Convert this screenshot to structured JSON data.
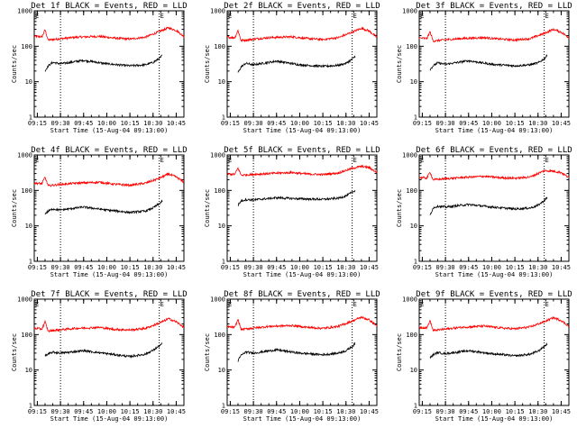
{
  "chart_data": [
    {
      "type": "line",
      "title": "Det 1f BLACK = Events, RED = LLD",
      "xlabel": "Start Time (15-Aug-04 09:13:00)",
      "ylabel": "Counts/sec",
      "yscale": "log",
      "ylim": [
        1,
        1000
      ],
      "xlim": [
        "09:13",
        "10:50"
      ],
      "xticks": [
        "09:15",
        "09:30",
        "09:45",
        "10:00",
        "10:15",
        "10:30",
        "10:45"
      ],
      "yticks": [
        "1",
        "10",
        "100",
        "1000"
      ],
      "markers": [
        {
          "label": "E",
          "x": "09:13"
        },
        {
          "label": "E",
          "x": "10:34"
        }
      ],
      "vlines": [
        "09:30",
        "10:34"
      ],
      "grid": false,
      "legend": "none",
      "series": [
        {
          "color": "#ff0000",
          "x": [
            "09:13",
            "09:18",
            "09:20",
            "09:22",
            "09:28",
            "09:40",
            "09:55",
            "10:05",
            "10:15",
            "10:25",
            "10:34",
            "10:40",
            "10:45",
            "10:50"
          ],
          "values": [
            190,
            185,
            290,
            150,
            160,
            180,
            190,
            170,
            160,
            180,
            260,
            330,
            280,
            190
          ]
        },
        {
          "color": "#000000",
          "x": [
            "09:20",
            "09:22",
            "09:25",
            "09:30",
            "09:45",
            "10:00",
            "10:15",
            "10:25",
            "10:30",
            "10:34",
            "10:36"
          ],
          "values": [
            20,
            28,
            35,
            32,
            40,
            32,
            28,
            30,
            35,
            45,
            55
          ]
        }
      ]
    },
    {
      "type": "line",
      "title": "Det 2f BLACK = Events, RED = LLD",
      "xlabel": "Start Time (15-Aug-04 09:13:00)",
      "ylabel": "Counts/sec",
      "yscale": "log",
      "ylim": [
        1,
        1000
      ],
      "xlim": [
        "09:13",
        "10:50"
      ],
      "xticks": [
        "09:15",
        "09:30",
        "09:45",
        "10:00",
        "10:15",
        "10:30",
        "10:45"
      ],
      "yticks": [
        "1",
        "10",
        "100",
        "1000"
      ],
      "markers": [
        {
          "label": "E",
          "x": "09:13"
        },
        {
          "label": "E",
          "x": "10:34"
        }
      ],
      "vlines": [
        "09:30",
        "10:34"
      ],
      "grid": false,
      "legend": "none",
      "series": [
        {
          "color": "#ff0000",
          "x": [
            "09:13",
            "09:18",
            "09:20",
            "09:22",
            "09:28",
            "09:40",
            "09:55",
            "10:05",
            "10:15",
            "10:25",
            "10:34",
            "10:40",
            "10:45",
            "10:50"
          ],
          "values": [
            180,
            175,
            280,
            145,
            155,
            175,
            185,
            165,
            155,
            175,
            250,
            320,
            270,
            180
          ]
        },
        {
          "color": "#000000",
          "x": [
            "09:20",
            "09:22",
            "09:25",
            "09:30",
            "09:45",
            "10:00",
            "10:15",
            "10:25",
            "10:30",
            "10:34",
            "10:36"
          ],
          "values": [
            18,
            26,
            33,
            30,
            38,
            30,
            27,
            29,
            33,
            43,
            52
          ]
        }
      ]
    },
    {
      "type": "line",
      "title": "Det 3f BLACK = Events, RED = LLD",
      "xlabel": "Start Time (15-Aug-04 09:13:00)",
      "ylabel": "Counts/sec",
      "yscale": "log",
      "ylim": [
        1,
        1000
      ],
      "xlim": [
        "09:13",
        "10:50"
      ],
      "xticks": [
        "09:15",
        "09:30",
        "09:45",
        "10:00",
        "10:15",
        "10:30",
        "10:45"
      ],
      "yticks": [
        "1",
        "10",
        "100",
        "1000"
      ],
      "markers": [
        {
          "label": "E",
          "x": "09:13"
        },
        {
          "label": "E",
          "x": "10:34"
        }
      ],
      "vlines": [
        "09:30",
        "10:34"
      ],
      "grid": false,
      "legend": "none",
      "series": [
        {
          "color": "#ff0000",
          "x": [
            "09:13",
            "09:18",
            "09:20",
            "09:22",
            "09:28",
            "09:40",
            "09:55",
            "10:05",
            "10:15",
            "10:25",
            "10:34",
            "10:40",
            "10:45",
            "10:50"
          ],
          "values": [
            170,
            165,
            260,
            140,
            150,
            165,
            175,
            160,
            150,
            165,
            230,
            300,
            250,
            175
          ]
        },
        {
          "color": "#000000",
          "x": [
            "09:20",
            "09:22",
            "09:25",
            "09:30",
            "09:45",
            "10:00",
            "10:15",
            "10:25",
            "10:30",
            "10:34",
            "10:36"
          ],
          "values": [
            22,
            28,
            34,
            31,
            39,
            31,
            28,
            30,
            34,
            44,
            56
          ]
        }
      ]
    },
    {
      "type": "line",
      "title": "Det 4f BLACK = Events, RED = LLD",
      "xlabel": "Start Time (15-Aug-04 09:13:00)",
      "ylabel": "Counts/sec",
      "yscale": "log",
      "ylim": [
        1,
        1000
      ],
      "xlim": [
        "09:13",
        "10:50"
      ],
      "xticks": [
        "09:15",
        "09:30",
        "09:45",
        "10:00",
        "10:15",
        "10:30",
        "10:45"
      ],
      "yticks": [
        "1",
        "10",
        "100",
        "1000"
      ],
      "markers": [
        {
          "label": "E",
          "x": "09:13"
        },
        {
          "label": "E",
          "x": "10:34"
        }
      ],
      "vlines": [
        "09:30",
        "10:34"
      ],
      "grid": false,
      "legend": "none",
      "series": [
        {
          "color": "#ff0000",
          "x": [
            "09:13",
            "09:18",
            "09:20",
            "09:22",
            "09:28",
            "09:40",
            "09:55",
            "10:05",
            "10:15",
            "10:25",
            "10:34",
            "10:40",
            "10:45",
            "10:50"
          ],
          "values": [
            160,
            155,
            240,
            135,
            145,
            160,
            170,
            150,
            140,
            160,
            220,
            290,
            240,
            170
          ]
        },
        {
          "color": "#000000",
          "x": [
            "09:20",
            "09:22",
            "09:25",
            "09:30",
            "09:45",
            "10:00",
            "10:15",
            "10:25",
            "10:30",
            "10:34",
            "10:36"
          ],
          "values": [
            22,
            26,
            30,
            28,
            34,
            28,
            24,
            26,
            32,
            42,
            50
          ]
        }
      ]
    },
    {
      "type": "line",
      "title": "Det 5f BLACK = Events, RED = LLD",
      "xlabel": "Start Time (15-Aug-04 09:13:00)",
      "ylabel": "Counts/sec",
      "yscale": "log",
      "ylim": [
        1,
        1000
      ],
      "xlim": [
        "09:13",
        "10:50"
      ],
      "xticks": [
        "09:15",
        "09:30",
        "09:45",
        "10:00",
        "10:15",
        "10:30",
        "10:45"
      ],
      "yticks": [
        "1",
        "10",
        "100",
        "1000"
      ],
      "markers": [
        {
          "label": "E",
          "x": "09:13"
        },
        {
          "label": "E",
          "x": "10:34"
        }
      ],
      "vlines": [
        "09:30",
        "10:34"
      ],
      "grid": false,
      "legend": "none",
      "series": [
        {
          "color": "#ff0000",
          "x": [
            "09:13",
            "09:18",
            "09:20",
            "09:22",
            "09:28",
            "09:40",
            "09:55",
            "10:05",
            "10:15",
            "10:25",
            "10:34",
            "10:40",
            "10:45",
            "10:50"
          ],
          "values": [
            290,
            285,
            430,
            270,
            280,
            300,
            320,
            290,
            280,
            310,
            420,
            480,
            440,
            320
          ]
        },
        {
          "color": "#000000",
          "x": [
            "09:20",
            "09:22",
            "09:25",
            "09:30",
            "09:45",
            "10:00",
            "10:15",
            "10:25",
            "10:30",
            "10:34",
            "10:36"
          ],
          "values": [
            38,
            50,
            55,
            54,
            62,
            58,
            56,
            60,
            70,
            88,
            100
          ]
        }
      ]
    },
    {
      "type": "line",
      "title": "Det 6f BLACK = Events, RED = LLD",
      "xlabel": "Start Time (15-Aug-04 09:13:00)",
      "ylabel": "Counts/sec",
      "yscale": "log",
      "ylim": [
        1,
        1000
      ],
      "xlim": [
        "09:13",
        "10:50"
      ],
      "xticks": [
        "09:15",
        "09:30",
        "09:45",
        "10:00",
        "10:15",
        "10:30",
        "10:45"
      ],
      "yticks": [
        "1",
        "10",
        "100",
        "1000"
      ],
      "markers": [
        {
          "label": "E",
          "x": "09:13"
        },
        {
          "label": "E",
          "x": "10:34"
        }
      ],
      "vlines": [
        "09:30",
        "10:34"
      ],
      "grid": false,
      "legend": "none",
      "series": [
        {
          "color": "#ff0000",
          "x": [
            "09:13",
            "09:18",
            "09:20",
            "09:22",
            "09:28",
            "09:40",
            "09:55",
            "10:05",
            "10:15",
            "10:25",
            "10:34",
            "10:40",
            "10:45",
            "10:50"
          ],
          "values": [
            230,
            225,
            330,
            200,
            210,
            230,
            250,
            230,
            220,
            240,
            360,
            350,
            320,
            230
          ]
        },
        {
          "color": "#000000",
          "x": [
            "09:20",
            "09:22",
            "09:25",
            "09:30",
            "09:45",
            "10:00",
            "10:15",
            "10:25",
            "10:30",
            "10:34",
            "10:36"
          ],
          "values": [
            20,
            32,
            36,
            34,
            40,
            34,
            30,
            32,
            38,
            52,
            62
          ]
        }
      ]
    },
    {
      "type": "line",
      "title": "Det 7f BLACK = Events, RED = LLD",
      "xlabel": "Start Time (15-Aug-04 09:13:00)",
      "ylabel": "Counts/sec",
      "yscale": "log",
      "ylim": [
        1,
        1000
      ],
      "xlim": [
        "09:13",
        "10:50"
      ],
      "xticks": [
        "09:15",
        "09:30",
        "09:45",
        "10:00",
        "10:15",
        "10:30",
        "10:45"
      ],
      "yticks": [
        "1",
        "10",
        "100",
        "1000"
      ],
      "markers": [
        {
          "label": "E",
          "x": "09:13"
        },
        {
          "label": "E",
          "x": "10:34"
        }
      ],
      "vlines": [
        "09:30",
        "10:34"
      ],
      "grid": false,
      "legend": "none",
      "series": [
        {
          "color": "#ff0000",
          "x": [
            "09:13",
            "09:18",
            "09:20",
            "09:22",
            "09:28",
            "09:40",
            "09:55",
            "10:05",
            "10:15",
            "10:25",
            "10:34",
            "10:40",
            "10:45",
            "10:50"
          ],
          "values": [
            150,
            145,
            230,
            125,
            135,
            150,
            160,
            140,
            135,
            150,
            210,
            280,
            230,
            160
          ]
        },
        {
          "color": "#000000",
          "x": [
            "09:20",
            "09:22",
            "09:25",
            "09:30",
            "09:45",
            "10:00",
            "10:15",
            "10:25",
            "10:30",
            "10:34",
            "10:36"
          ],
          "values": [
            25,
            28,
            32,
            30,
            35,
            29,
            24,
            28,
            36,
            48,
            55
          ]
        }
      ]
    },
    {
      "type": "line",
      "title": "Det 8f BLACK = Events, RED = LLD",
      "xlabel": "Start Time (15-Aug-04 09:13:00)",
      "ylabel": "Counts/sec",
      "yscale": "log",
      "ylim": [
        1,
        1000
      ],
      "xlim": [
        "09:13",
        "10:50"
      ],
      "xticks": [
        "09:15",
        "09:30",
        "09:45",
        "10:00",
        "10:15",
        "10:30",
        "10:45"
      ],
      "yticks": [
        "1",
        "10",
        "100",
        "1000"
      ],
      "markers": [
        {
          "label": "E",
          "x": "09:13"
        },
        {
          "label": "E",
          "x": "10:34"
        }
      ],
      "vlines": [
        "09:30",
        "10:34"
      ],
      "grid": false,
      "legend": "none",
      "series": [
        {
          "color": "#ff0000",
          "x": [
            "09:13",
            "09:18",
            "09:20",
            "09:22",
            "09:28",
            "09:40",
            "09:55",
            "10:05",
            "10:15",
            "10:25",
            "10:34",
            "10:40",
            "10:45",
            "10:50"
          ],
          "values": [
            165,
            160,
            270,
            140,
            150,
            170,
            180,
            160,
            150,
            170,
            240,
            310,
            260,
            175
          ]
        },
        {
          "color": "#000000",
          "x": [
            "09:20",
            "09:22",
            "09:25",
            "09:30",
            "09:45",
            "10:00",
            "10:15",
            "10:25",
            "10:30",
            "10:34",
            "10:36"
          ],
          "values": [
            18,
            26,
            32,
            30,
            37,
            30,
            27,
            30,
            35,
            46,
            56
          ]
        }
      ]
    },
    {
      "type": "line",
      "title": "Det 9f BLACK = Events, RED = LLD",
      "xlabel": "Start Time (15-Aug-04 09:13:00)",
      "ylabel": "Counts/sec",
      "yscale": "log",
      "ylim": [
        1,
        1000
      ],
      "xlim": [
        "09:13",
        "10:50"
      ],
      "xticks": [
        "09:15",
        "09:30",
        "09:45",
        "10:00",
        "10:15",
        "10:30",
        "10:45"
      ],
      "yticks": [
        "1",
        "10",
        "100",
        "1000"
      ],
      "markers": [
        {
          "label": "E",
          "x": "09:13"
        },
        {
          "label": "E",
          "x": "10:34"
        }
      ],
      "vlines": [
        "09:30",
        "10:34"
      ],
      "grid": false,
      "legend": "none",
      "series": [
        {
          "color": "#ff0000",
          "x": [
            "09:13",
            "09:18",
            "09:20",
            "09:22",
            "09:28",
            "09:40",
            "09:55",
            "10:05",
            "10:15",
            "10:25",
            "10:34",
            "10:40",
            "10:45",
            "10:50"
          ],
          "values": [
            160,
            155,
            250,
            130,
            140,
            160,
            175,
            155,
            145,
            165,
            230,
            300,
            250,
            170
          ]
        },
        {
          "color": "#000000",
          "x": [
            "09:20",
            "09:22",
            "09:25",
            "09:30",
            "09:45",
            "10:00",
            "10:15",
            "10:25",
            "10:30",
            "10:34",
            "10:36"
          ],
          "values": [
            22,
            27,
            31,
            29,
            35,
            29,
            25,
            28,
            34,
            46,
            55
          ]
        }
      ]
    }
  ]
}
